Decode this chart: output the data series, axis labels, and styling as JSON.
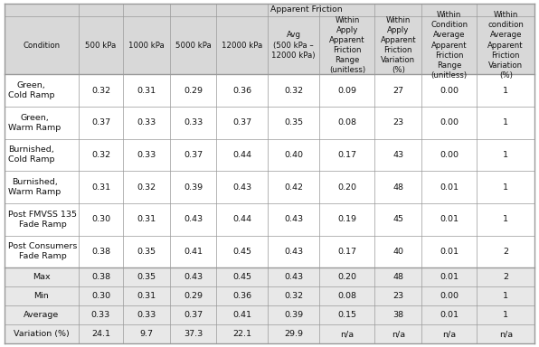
{
  "title": "Apparent Friction",
  "col_headers_row2": [
    "Condition",
    "500 kPa",
    "1000 kPa",
    "5000 kPa",
    "12000 kPa",
    "Avg\n(500 kPa –\n12000 kPa)",
    "Within\nApply\nApparent\nFriction\nRange\n(unitless)",
    "Within\nApply\nApparent\nFriction\nVariation\n(%)",
    "Within\nCondition\nAverage\nApparent\nFriction\nRange\n(unitless)",
    "Within\ncondition\nAverage\nApparent\nFriction\nVariation\n(%)"
  ],
  "data_rows": [
    [
      "Green,\nCold Ramp",
      "0.32",
      "0.31",
      "0.29",
      "0.36",
      "0.32",
      "0.09",
      "27",
      "0.00",
      "1"
    ],
    [
      "Green,\nWarm Ramp",
      "0.37",
      "0.33",
      "0.33",
      "0.37",
      "0.35",
      "0.08",
      "23",
      "0.00",
      "1"
    ],
    [
      "Burnished,\nCold Ramp",
      "0.32",
      "0.33",
      "0.37",
      "0.44",
      "0.40",
      "0.17",
      "43",
      "0.00",
      "1"
    ],
    [
      "Burnished,\nWarm Ramp",
      "0.31",
      "0.32",
      "0.39",
      "0.43",
      "0.42",
      "0.20",
      "48",
      "0.01",
      "1"
    ],
    [
      "Post FMVSS 135\nFade Ramp",
      "0.30",
      "0.31",
      "0.43",
      "0.44",
      "0.43",
      "0.19",
      "45",
      "0.01",
      "1"
    ],
    [
      "Post Consumers\nFade Ramp",
      "0.38",
      "0.35",
      "0.41",
      "0.45",
      "0.43",
      "0.17",
      "40",
      "0.01",
      "2"
    ]
  ],
  "stat_rows": [
    [
      "Max",
      "0.38",
      "0.35",
      "0.43",
      "0.45",
      "0.43",
      "0.20",
      "48",
      "0.01",
      "2"
    ],
    [
      "Min",
      "0.30",
      "0.31",
      "0.29",
      "0.36",
      "0.32",
      "0.08",
      "23",
      "0.00",
      "1"
    ],
    [
      "Average",
      "0.33",
      "0.33",
      "0.37",
      "0.41",
      "0.39",
      "0.15",
      "38",
      "0.01",
      "1"
    ],
    [
      "Variation (%)",
      "24.1",
      "9.7",
      "37.3",
      "22.1",
      "29.9",
      "n/a",
      "n/a",
      "n/a",
      "n/a"
    ]
  ],
  "bg_white": "#ffffff",
  "bg_gray": "#d8d8d8",
  "bg_light_gray": "#e8e8e8",
  "line_color": "#999999",
  "text_color": "#111111",
  "header_fs": 6.2,
  "data_fs": 6.8,
  "col_widths_rel": [
    1.35,
    0.8,
    0.85,
    0.85,
    0.92,
    0.95,
    1.0,
    0.85,
    1.0,
    1.05
  ]
}
